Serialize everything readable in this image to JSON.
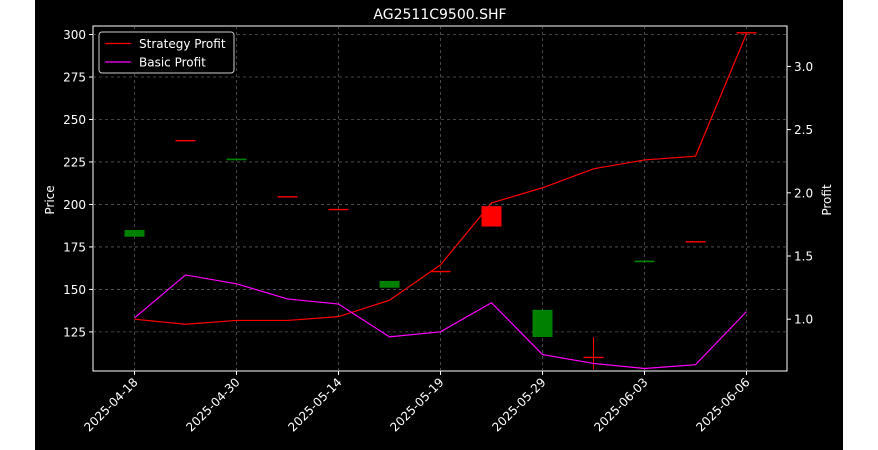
{
  "chart_data": {
    "type": "candlestick",
    "title": "AG2511C9500.SHF",
    "ylabel_left": "Price",
    "ylabel_right": "Profit",
    "xlabel": "",
    "x_ticks": [
      "2025-04-18",
      "2025-04-30",
      "2025-05-14",
      "2025-05-19",
      "2025-05-29",
      "2025-06-03",
      "2025-06-06"
    ],
    "y_left_ticks": [
      125,
      150,
      175,
      200,
      225,
      250,
      275,
      300
    ],
    "y_right_ticks": [
      "1.0",
      "1.5",
      "2.0",
      "2.5",
      "3.0"
    ],
    "ylim_left": [
      102,
      305
    ],
    "ylim_right": [
      0.59,
      3.32
    ],
    "grid": true,
    "legend": {
      "placement": "top-left",
      "entries": [
        "Strategy Profit",
        "Basic Profit"
      ]
    },
    "colors": {
      "background": "#000000",
      "up": "#008000",
      "down": "#ff0000",
      "strategy": "#ff0000",
      "basic": "#ff00ff",
      "grid": "#808080",
      "text": "#ffffff"
    },
    "candles": [
      {
        "index": 0,
        "open": 181,
        "close": 185,
        "high": 185,
        "low": 181,
        "color": "up"
      },
      {
        "index": 1,
        "open": 237.5,
        "close": 237.5,
        "high": 237.5,
        "low": 237.5,
        "color": "down"
      },
      {
        "index": 2,
        "open": 226,
        "close": 227,
        "high": 227,
        "low": 226,
        "color": "up"
      },
      {
        "index": 3,
        "open": 204.5,
        "close": 204.5,
        "high": 204.5,
        "low": 204.5,
        "color": "down"
      },
      {
        "index": 4,
        "open": 197,
        "close": 197,
        "high": 197,
        "low": 197,
        "color": "down"
      },
      {
        "index": 5,
        "open": 151,
        "close": 155,
        "high": 155,
        "low": 151,
        "color": "up"
      },
      {
        "index": 6,
        "open": 160.5,
        "close": 160.5,
        "high": 160.5,
        "low": 160.5,
        "color": "down"
      },
      {
        "index": 7,
        "open": 199,
        "close": 187,
        "high": 199,
        "low": 187,
        "color": "down"
      },
      {
        "index": 8,
        "open": 122,
        "close": 138,
        "high": 138,
        "low": 122,
        "color": "up"
      },
      {
        "index": 9,
        "open": 110,
        "close": 110,
        "high": 122,
        "low": 103,
        "color": "down"
      },
      {
        "index": 10,
        "open": 166,
        "close": 167,
        "high": 167,
        "low": 166,
        "color": "up"
      },
      {
        "index": 11,
        "open": 178,
        "close": 178,
        "high": 178,
        "low": 178,
        "color": "down"
      },
      {
        "index": 12,
        "open": 301,
        "close": 301,
        "high": 301,
        "low": 301,
        "color": "down"
      }
    ],
    "series": [
      {
        "name": "Strategy Profit",
        "values": [
          1.0,
          0.96,
          0.99,
          0.99,
          1.02,
          1.15,
          1.43,
          1.92,
          2.04,
          2.19,
          2.26,
          2.29,
          3.26
        ]
      },
      {
        "name": "Basic Profit",
        "values": [
          1.01,
          1.35,
          1.28,
          1.16,
          1.12,
          0.86,
          0.9,
          1.13,
          0.72,
          0.65,
          0.61,
          0.64,
          1.06
        ]
      }
    ]
  }
}
